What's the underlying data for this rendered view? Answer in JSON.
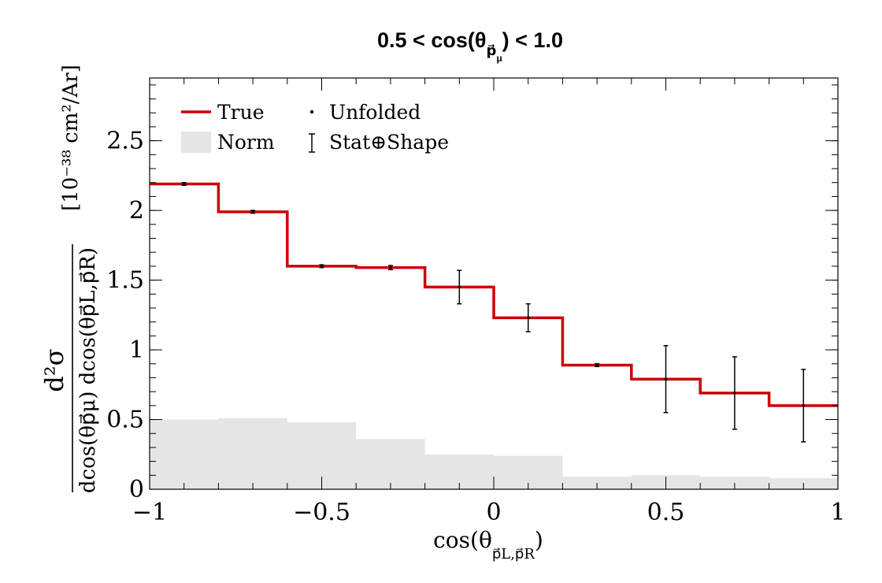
{
  "chart_data": {
    "type": "line",
    "title": "0.5 < cos(θ",
    "title_sub": "p⃗",
    "title_subsub": "μ",
    "title_tail": ") < 1.0",
    "xlabel": "cos(θ",
    "xlabel_sub": "p⃗L,p⃗R",
    "xlabel_tail": ")",
    "ylabel_num": "d²σ",
    "ylabel_den": "dcos(θp⃗μ) dcos(θp⃗L,p⃗R)",
    "ylabel_unit": "[10⁻³⁸ cm²/Ar]",
    "xlim": [
      -1,
      1
    ],
    "ylim": [
      0,
      2.95
    ],
    "x_ticks": [
      -1,
      -0.5,
      0,
      0.5,
      1
    ],
    "x_tick_labels": [
      "−1",
      "−0.5",
      "0",
      "0.5",
      "1"
    ],
    "y_ticks": [
      0,
      0.5,
      1,
      1.5,
      2,
      2.5
    ],
    "y_tick_labels": [
      "0",
      "0.5",
      "1",
      "1.5",
      "2",
      "2.5"
    ],
    "bin_edges": [
      -1,
      -0.8,
      -0.6,
      -0.4,
      -0.2,
      0,
      0.2,
      0.4,
      0.6,
      0.8,
      1
    ],
    "series": [
      {
        "name": "True",
        "kind": "step",
        "color": "#cc0000",
        "values": [
          2.19,
          1.99,
          1.6,
          1.59,
          1.45,
          1.23,
          0.89,
          0.79,
          0.69,
          0.6
        ]
      },
      {
        "name": "Unfolded",
        "kind": "points",
        "color": "#000000",
        "x": [
          -0.9,
          -0.7,
          -0.5,
          -0.3,
          -0.1,
          0.1,
          0.3,
          0.5,
          0.7,
          0.9
        ],
        "values": [
          2.19,
          1.99,
          1.6,
          1.59,
          1.45,
          1.23,
          0.89,
          0.79,
          0.69,
          0.6
        ],
        "err_lo": [
          0.01,
          0.01,
          0.01,
          0.015,
          0.12,
          0.1,
          0.01,
          0.24,
          0.26,
          0.26
        ],
        "err_hi": [
          0.01,
          0.01,
          0.01,
          0.015,
          0.12,
          0.1,
          0.01,
          0.24,
          0.26,
          0.26
        ]
      },
      {
        "name": "Norm",
        "kind": "filled-step",
        "color": "#e5e5e5",
        "values": [
          0.5,
          0.51,
          0.48,
          0.36,
          0.25,
          0.24,
          0.09,
          0.1,
          0.09,
          0.08
        ]
      }
    ],
    "legend": {
      "position": "top-left",
      "entries": [
        {
          "label": "True",
          "symbol": "line"
        },
        {
          "label": "Unfolded",
          "symbol": "dot"
        },
        {
          "label": "Norm",
          "symbol": "fill"
        },
        {
          "label": "Stat⊕Shape",
          "symbol": "errorbar"
        }
      ]
    }
  }
}
